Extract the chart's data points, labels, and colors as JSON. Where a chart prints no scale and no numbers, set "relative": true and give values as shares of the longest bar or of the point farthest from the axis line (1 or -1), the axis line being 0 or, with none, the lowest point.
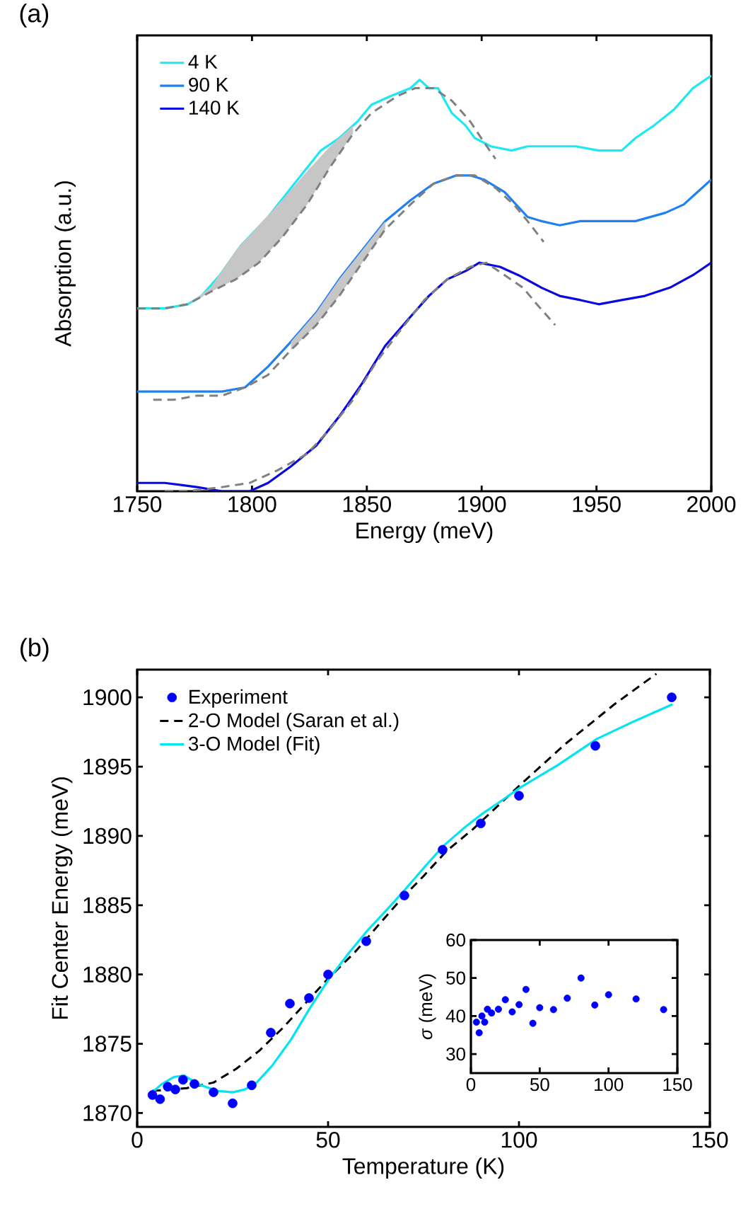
{
  "chart_data": [
    {
      "type": "line",
      "title": "(a)",
      "xlabel": "Energy (meV)",
      "ylabel": "Absorption (a.u.)",
      "relative": true,
      "xlim": [
        1750,
        2000
      ],
      "xticks": [
        1750,
        1800,
        1850,
        1900,
        1950,
        2000
      ],
      "tick_labels": "x",
      "legend": "top left",
      "series": [
        {
          "name": "4 K",
          "color": "#1ee8f2",
          "line_style": "solid",
          "x": [
            1750,
            1762,
            1772,
            1778,
            1786,
            1795,
            1807,
            1817,
            1830,
            1838,
            1846,
            1852,
            1860,
            1869,
            1873,
            1877,
            1881,
            1887,
            1893,
            1897,
            1904,
            1913,
            1920,
            1930,
            1941,
            1951,
            1961,
            1967,
            1975,
            1984,
            1992,
            2000
          ],
          "values": [
            0.44,
            0.44,
            0.45,
            0.47,
            0.52,
            0.59,
            0.66,
            0.73,
            0.82,
            0.85,
            0.89,
            0.93,
            0.95,
            0.97,
            0.99,
            0.97,
            0.97,
            0.91,
            0.88,
            0.85,
            0.83,
            0.82,
            0.83,
            0.83,
            0.83,
            0.82,
            0.82,
            0.85,
            0.88,
            0.92,
            0.97,
            1.0
          ]
        },
        {
          "name": "90 K",
          "color": "#2080f0",
          "line_style": "solid",
          "x": [
            1750,
            1762,
            1776,
            1787,
            1797,
            1807,
            1817,
            1828,
            1838,
            1848,
            1858,
            1869,
            1879,
            1889,
            1895,
            1901,
            1910,
            1920,
            1926,
            1934,
            1943,
            1951,
            1961,
            1967,
            1980,
            1988,
            1994,
            2000
          ],
          "values": [
            0.24,
            0.24,
            0.24,
            0.24,
            0.25,
            0.3,
            0.36,
            0.43,
            0.51,
            0.58,
            0.65,
            0.7,
            0.74,
            0.76,
            0.76,
            0.75,
            0.72,
            0.66,
            0.65,
            0.64,
            0.65,
            0.65,
            0.65,
            0.65,
            0.67,
            0.69,
            0.72,
            0.75
          ]
        },
        {
          "name": "140 K",
          "color": "#0808e0",
          "line_style": "solid",
          "x": [
            1750,
            1762,
            1776,
            1787,
            1799,
            1807,
            1817,
            1828,
            1838,
            1848,
            1858,
            1869,
            1877,
            1885,
            1893,
            1899,
            1908,
            1916,
            1926,
            1934,
            1943,
            1951,
            1961,
            1971,
            1982,
            1992,
            2000
          ],
          "values": [
            0.02,
            0.02,
            0.01,
            0.0,
            0.0,
            0.02,
            0.06,
            0.11,
            0.18,
            0.26,
            0.35,
            0.42,
            0.47,
            0.51,
            0.53,
            0.55,
            0.54,
            0.52,
            0.49,
            0.47,
            0.46,
            0.45,
            0.46,
            0.47,
            0.49,
            0.52,
            0.55
          ]
        },
        {
          "color": "#808080",
          "line_style": "dashed",
          "x": [
            1750,
            1762,
            1772,
            1782,
            1793,
            1803,
            1813,
            1824,
            1834,
            1844,
            1852,
            1863,
            1871,
            1879,
            1887,
            1895,
            1901,
            1906
          ],
          "values": [
            0.44,
            0.44,
            0.45,
            0.48,
            0.51,
            0.55,
            0.61,
            0.69,
            0.78,
            0.86,
            0.91,
            0.95,
            0.97,
            0.97,
            0.94,
            0.89,
            0.84,
            0.8
          ],
          "lower": [
            null,
            null,
            0.45,
            0.48,
            0.51,
            0.55,
            0.61,
            0.69,
            0.78,
            0.86,
            null,
            null,
            null,
            null,
            null,
            null,
            null,
            null
          ],
          "upper": [
            null,
            null,
            0.45,
            0.49,
            0.58,
            0.64,
            0.7,
            0.77,
            0.83,
            0.88,
            null,
            null,
            null,
            null,
            null,
            null,
            null,
            null
          ]
        },
        {
          "color": "#808080",
          "line_style": "dashed",
          "x": [
            1757,
            1766,
            1776,
            1787,
            1797,
            1807,
            1817,
            1828,
            1838,
            1848,
            1858,
            1869,
            1879,
            1889,
            1897,
            1906,
            1914,
            1920,
            1927
          ],
          "values": [
            0.22,
            0.22,
            0.23,
            0.23,
            0.25,
            0.28,
            0.34,
            0.4,
            0.47,
            0.55,
            0.63,
            0.69,
            0.74,
            0.76,
            0.76,
            0.73,
            0.69,
            0.65,
            0.6
          ],
          "lower": [
            null,
            null,
            null,
            null,
            null,
            null,
            0.34,
            0.4,
            0.47,
            0.55,
            0.63,
            null,
            null,
            null,
            null,
            null,
            null,
            null,
            null
          ],
          "upper": [
            null,
            null,
            null,
            null,
            null,
            null,
            0.36,
            0.43,
            0.51,
            0.58,
            0.65,
            null,
            null,
            null,
            null,
            null,
            null,
            null,
            null
          ]
        },
        {
          "color": "#808080",
          "line_style": "dashed",
          "x": [
            1762,
            1772,
            1787,
            1799,
            1811,
            1824,
            1834,
            1844,
            1854,
            1865,
            1875,
            1885,
            1895,
            1902,
            1910,
            1918,
            1924,
            1932
          ],
          "values": [
            0.0,
            0.0,
            0.01,
            0.02,
            0.05,
            0.09,
            0.15,
            0.22,
            0.31,
            0.39,
            0.46,
            0.51,
            0.54,
            0.55,
            0.52,
            0.49,
            0.45,
            0.4
          ]
        }
      ]
    },
    {
      "type": "line",
      "title": "(b)",
      "xlabel": "Temperature (K)",
      "ylabel": "Fit Center Energy (meV)",
      "xlim": [
        0,
        150
      ],
      "xticks": [
        0,
        50,
        100,
        150
      ],
      "ylim": [
        1869,
        1902
      ],
      "yticks": [
        1870,
        1875,
        1880,
        1885,
        1890,
        1895,
        1900
      ],
      "legend": "top left",
      "series": [
        {
          "name": "Experiment",
          "type": "scatter",
          "color": "#0000ff",
          "x": [
            4,
            6,
            8,
            10,
            12,
            15,
            20,
            25,
            30,
            35,
            40,
            45,
            50,
            60,
            70,
            80,
            90,
            100,
            120,
            140
          ],
          "values": [
            1871.3,
            1871.0,
            1871.9,
            1871.7,
            1872.4,
            1872.1,
            1871.5,
            1870.7,
            1872.0,
            1875.8,
            1877.9,
            1878.3,
            1880.0,
            1882.4,
            1885.7,
            1889.0,
            1890.9,
            1892.9,
            1896.5,
            1900.0
          ]
        },
        {
          "name": "2-O Model (Saran et al.)",
          "type": "line",
          "line_style": "dashed",
          "color": "#000000",
          "x": [
            4,
            13,
            20,
            26,
            32,
            38,
            44,
            50,
            57,
            63,
            69,
            75,
            81,
            88,
            100,
            112,
            125,
            136
          ],
          "values": [
            1871.6,
            1871.8,
            1872.2,
            1873.2,
            1874.5,
            1876.1,
            1877.9,
            1879.7,
            1881.6,
            1883.5,
            1885.4,
            1887.1,
            1888.9,
            1890.5,
            1893.6,
            1896.6,
            1899.5,
            1901.7
          ]
        },
        {
          "name": "3-O Model (Fit)",
          "type": "line",
          "line_style": "solid",
          "color": "#00e6f0",
          "x": [
            4,
            6.5,
            9.6,
            12.4,
            15.8,
            20.8,
            25.1,
            28.2,
            31.3,
            35.3,
            40.3,
            45.3,
            50.3,
            55.6,
            60.4,
            65.5,
            70.4,
            75.4,
            80.3,
            85.3,
            90.4,
            95.2,
            100.4,
            110.1,
            120.4,
            129.6,
            140.2
          ],
          "values": [
            1871.5,
            1872.1,
            1872.6,
            1872.7,
            1872.1,
            1871.6,
            1871.5,
            1871.7,
            1872.2,
            1873.4,
            1875.3,
            1877.6,
            1879.7,
            1881.6,
            1883.2,
            1884.7,
            1886.2,
            1887.8,
            1889.3,
            1890.5,
            1891.6,
            1892.5,
            1893.5,
            1895.1,
            1897.0,
            1898.2,
            1899.5
          ]
        }
      ]
    },
    {
      "type": "scatter",
      "ylabel": "*σ* (meV)",
      "xlim": [
        0,
        150
      ],
      "xticks": [
        0,
        50,
        100,
        150
      ],
      "ylim": [
        25,
        60
      ],
      "yticks": [
        30,
        40,
        50,
        60
      ],
      "series": [
        {
          "color": "#0000ff",
          "x": [
            4,
            6,
            8,
            10,
            12,
            15,
            20,
            25,
            30,
            35,
            40,
            45,
            50,
            60,
            70,
            80,
            90,
            100,
            120,
            140
          ],
          "values": [
            38.4,
            35.6,
            40.0,
            38.4,
            41.8,
            40.8,
            41.8,
            44.3,
            41.1,
            43.0,
            47.0,
            38.1,
            42.2,
            41.7,
            44.7,
            50.0,
            42.9,
            45.6,
            44.5,
            41.7
          ]
        }
      ]
    }
  ]
}
